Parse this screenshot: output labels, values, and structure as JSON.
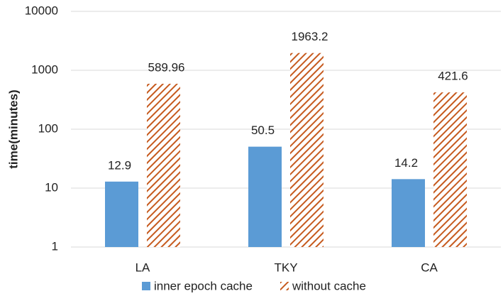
{
  "chart_data": {
    "type": "bar",
    "y_label": "time(minutes)",
    "categories": [
      "LA",
      "TKY",
      "CA"
    ],
    "series": [
      {
        "name": "inner epoch cache",
        "color": "#5b9bd5",
        "hatch": false,
        "values": [
          12.9,
          50.5,
          14.2
        ]
      },
      {
        "name": "without cache",
        "color": "#c65a1e",
        "hatch": true,
        "values": [
          589.96,
          1963.2,
          421.6
        ]
      }
    ],
    "log_y": true,
    "ylim": [
      1,
      10000
    ],
    "yticks": [
      1,
      10,
      100,
      1000,
      10000
    ],
    "grid": true,
    "legend": "bottom"
  }
}
